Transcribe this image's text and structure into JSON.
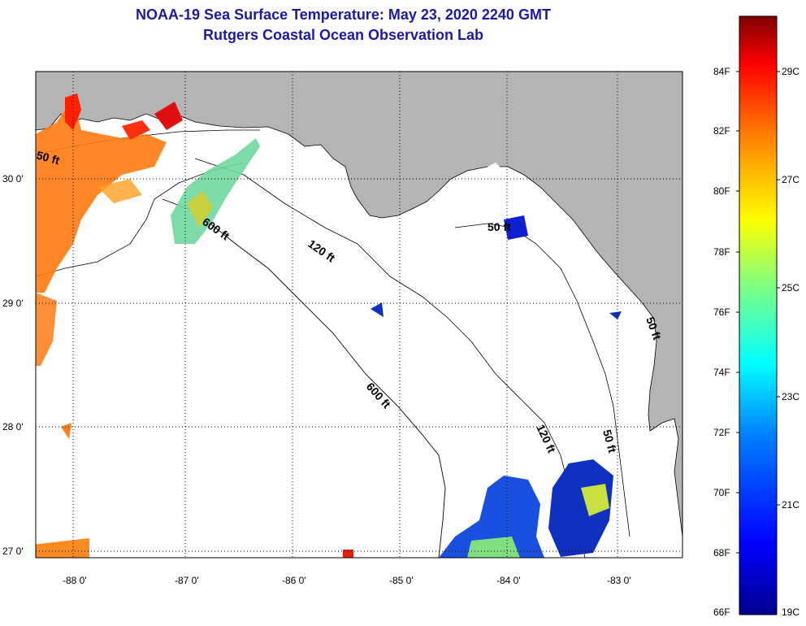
{
  "title": "NOAA-19 Sea Surface Temperature:  May 23, 2020 2240 GMT",
  "subtitle": "Rutgers Coastal Ocean Observation Lab",
  "map": {
    "lon_labels": [
      "-88 0'",
      "-87 0'",
      "-86 0'",
      "-85 0'",
      "-84 0'",
      "-83 0'"
    ],
    "lat_labels": [
      "30 0'",
      "29 0'",
      "28 0'",
      "27 0'"
    ],
    "contours": [
      "50 ft",
      "600 ft",
      "120 ft",
      "600 ft",
      "50 ft",
      "120 ft",
      "50 ft",
      "50 ft"
    ],
    "land_color": "#b4b4b4",
    "ocean_color": "#ffffff"
  },
  "colorbar": {
    "fahrenheit": [
      "84F",
      "82F",
      "80F",
      "78F",
      "76F",
      "74F",
      "72F",
      "70F",
      "68F",
      "66F"
    ],
    "celsius": [
      "29C",
      "27C",
      "25C",
      "23C",
      "21C",
      "19C"
    ],
    "colors": [
      "#7f0000",
      "#ff0000",
      "#ff8000",
      "#ffff00",
      "#80ff80",
      "#00ffff",
      "#0080ff",
      "#0000ff",
      "#00008f"
    ]
  }
}
